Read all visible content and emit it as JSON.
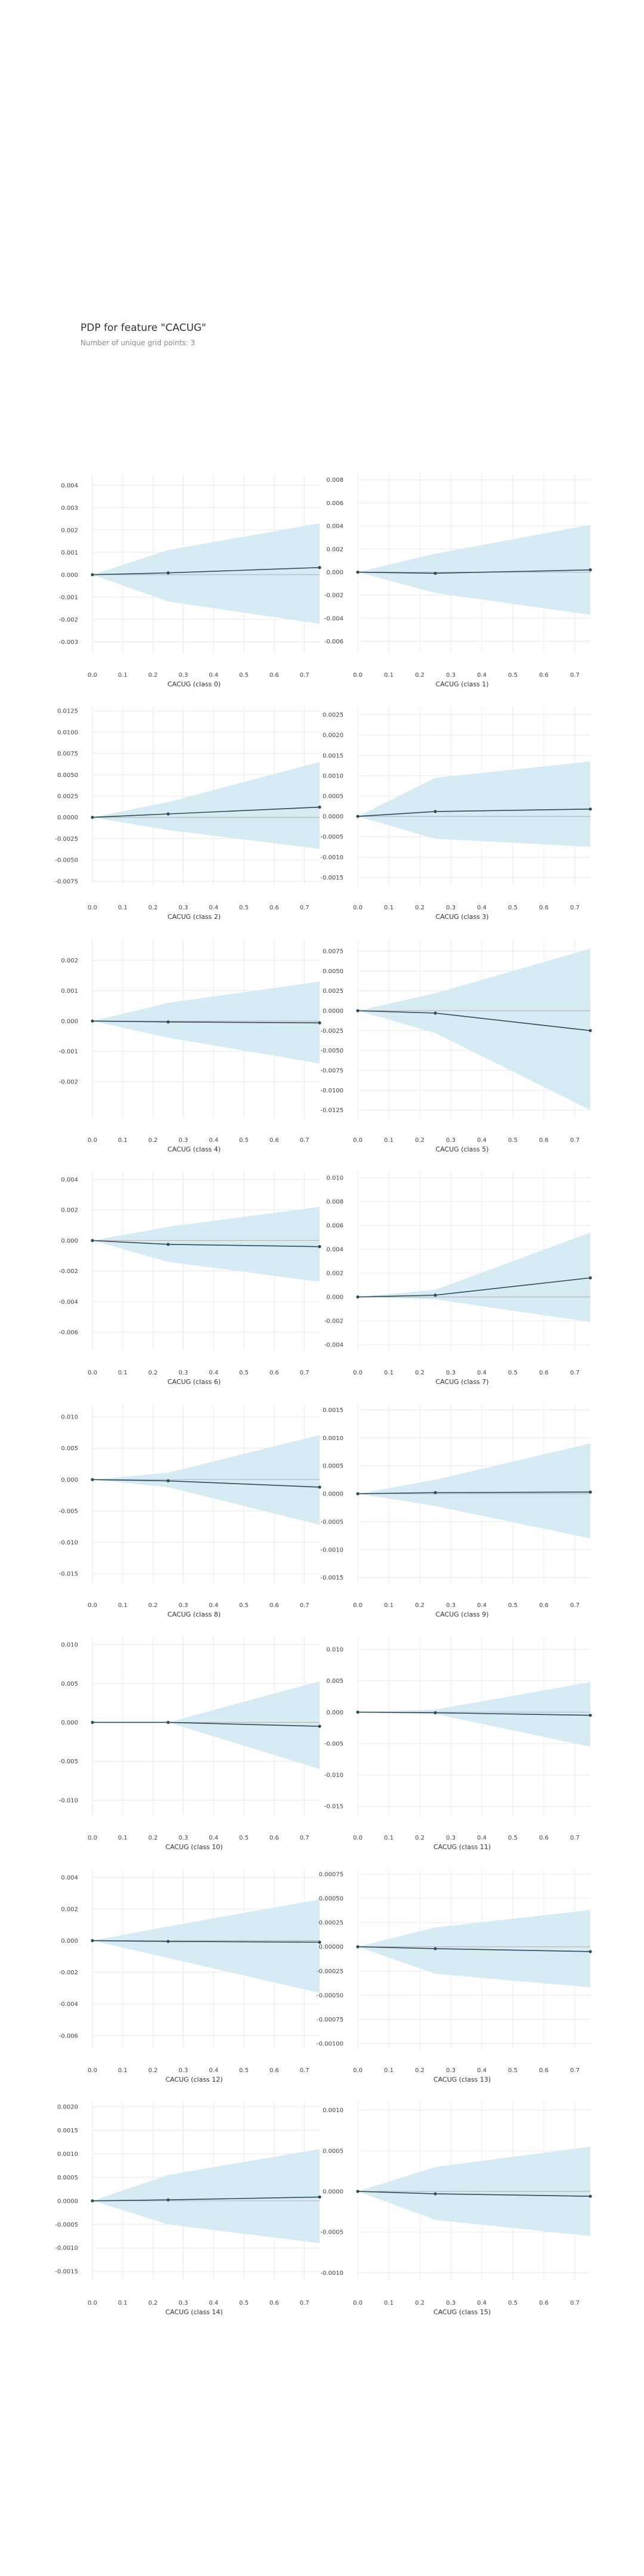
{
  "title": "PDP for feature \"CACUG\"",
  "subtitle": "Number of unique grid points: 3",
  "colors": {
    "band": "#d6ebf4",
    "line": "#2f4b57",
    "ref": "#b8b8b8",
    "grid": "#e9e9e9"
  },
  "chart_data": [
    {
      "type": "line",
      "xlabel": "CACUG (class 0)",
      "x": [
        0.0,
        0.25,
        0.75
      ],
      "y": [
        0.0,
        8e-05,
        0.00032
      ],
      "lower": [
        0.0,
        -0.0012,
        -0.0022
      ],
      "upper": [
        0.0,
        0.0011,
        0.0023
      ],
      "ylim": [
        -0.0035,
        0.0045
      ],
      "yticks": [
        -0.003,
        -0.002,
        -0.001,
        0.0,
        0.001,
        0.002,
        0.003,
        0.004
      ],
      "ytick_labels": [
        "-0.003",
        "-0.002",
        "-0.001",
        "0.000",
        "0.001",
        "0.002",
        "0.003",
        "0.004"
      ],
      "xticks": [
        0.0,
        0.1,
        0.2,
        0.3,
        0.4,
        0.5,
        0.6,
        0.7
      ],
      "xtick_labels": [
        "0.0",
        "0.1",
        "0.2",
        "0.3",
        "0.4",
        "0.5",
        "0.6",
        "0.7"
      ]
    },
    {
      "type": "line",
      "xlabel": "CACUG (class 1)",
      "x": [
        0.0,
        0.25,
        0.75
      ],
      "y": [
        0.0,
        -0.0001,
        0.0002
      ],
      "lower": [
        0.0,
        -0.0018,
        -0.0037
      ],
      "upper": [
        0.0,
        0.0016,
        0.0041
      ],
      "ylim": [
        -0.007,
        0.0085
      ],
      "yticks": [
        -0.006,
        -0.004,
        -0.002,
        0.0,
        0.002,
        0.004,
        0.006,
        0.008
      ],
      "ytick_labels": [
        "-0.006",
        "-0.004",
        "-0.002",
        "0.000",
        "0.002",
        "0.004",
        "0.006",
        "0.008"
      ],
      "xticks": [
        0.0,
        0.1,
        0.2,
        0.3,
        0.4,
        0.5,
        0.6,
        0.7
      ],
      "xtick_labels": [
        "0.0",
        "0.1",
        "0.2",
        "0.3",
        "0.4",
        "0.5",
        "0.6",
        "0.7"
      ]
    },
    {
      "type": "line",
      "xlabel": "CACUG (class 2)",
      "x": [
        0.0,
        0.25,
        0.75
      ],
      "y": [
        0.0,
        0.0004,
        0.0012
      ],
      "lower": [
        0.0,
        -0.0015,
        -0.0037
      ],
      "upper": [
        0.0,
        0.0018,
        0.0065
      ],
      "ylim": [
        -0.008,
        0.013
      ],
      "yticks": [
        -0.0075,
        -0.005,
        -0.0025,
        0.0,
        0.0025,
        0.005,
        0.0075,
        0.01,
        0.0125
      ],
      "ytick_labels": [
        "-0.0075",
        "-0.0050",
        "-0.0025",
        "0.0000",
        "0.0025",
        "0.0050",
        "0.0075",
        "0.0100",
        "0.0125"
      ],
      "xticks": [
        0.0,
        0.1,
        0.2,
        0.3,
        0.4,
        0.5,
        0.6,
        0.7
      ],
      "xtick_labels": [
        "0.0",
        "0.1",
        "0.2",
        "0.3",
        "0.4",
        "0.5",
        "0.6",
        "0.7"
      ]
    },
    {
      "type": "line",
      "xlabel": "CACUG (class 3)",
      "x": [
        0.0,
        0.25,
        0.75
      ],
      "y": [
        0.0,
        0.00012,
        0.00018
      ],
      "lower": [
        0.0,
        -0.00055,
        -0.00075
      ],
      "upper": [
        0.0,
        0.00095,
        0.00135
      ],
      "ylim": [
        -0.0017,
        0.0027
      ],
      "yticks": [
        -0.0015,
        -0.001,
        -0.0005,
        0.0,
        0.0005,
        0.001,
        0.0015,
        0.002,
        0.0025
      ],
      "ytick_labels": [
        "-0.0015",
        "-0.0010",
        "-0.0005",
        "0.0000",
        "0.0005",
        "0.0010",
        "0.0015",
        "0.0020",
        "0.0025"
      ],
      "xticks": [
        0.0,
        0.1,
        0.2,
        0.3,
        0.4,
        0.5,
        0.6,
        0.7
      ],
      "xtick_labels": [
        "0.0",
        "0.1",
        "0.2",
        "0.3",
        "0.4",
        "0.5",
        "0.6",
        "0.7"
      ]
    },
    {
      "type": "line",
      "xlabel": "CACUG (class 4)",
      "x": [
        0.0,
        0.25,
        0.75
      ],
      "y": [
        0.0,
        -3e-05,
        -6e-05
      ],
      "lower": [
        0.0,
        -0.00055,
        -0.0014
      ],
      "upper": [
        0.0,
        0.0006,
        0.0013
      ],
      "ylim": [
        -0.0032,
        0.0027
      ],
      "yticks": [
        -0.002,
        -0.001,
        0.0,
        0.001,
        0.002
      ],
      "ytick_labels": [
        "-0.002",
        "-0.001",
        "0.000",
        "0.001",
        "0.002"
      ],
      "xticks": [
        0.0,
        0.1,
        0.2,
        0.3,
        0.4,
        0.5,
        0.6,
        0.7
      ],
      "xtick_labels": [
        "0.0",
        "0.1",
        "0.2",
        "0.3",
        "0.4",
        "0.5",
        "0.6",
        "0.7"
      ]
    },
    {
      "type": "line",
      "xlabel": "CACUG (class 5)",
      "x": [
        0.0,
        0.25,
        0.75
      ],
      "y": [
        0.0,
        -0.0003,
        -0.0025
      ],
      "lower": [
        0.0,
        -0.0028,
        -0.0125
      ],
      "upper": [
        0.0,
        0.0022,
        0.0078
      ],
      "ylim": [
        -0.0135,
        0.009
      ],
      "yticks": [
        -0.0125,
        -0.01,
        -0.0075,
        -0.005,
        -0.0025,
        0.0,
        0.0025,
        0.005,
        0.0075
      ],
      "ytick_labels": [
        "-0.0125",
        "-0.0100",
        "-0.0075",
        "-0.0050",
        "-0.0025",
        "0.0000",
        "0.0025",
        "0.0050",
        "0.0075"
      ],
      "xticks": [
        0.0,
        0.1,
        0.2,
        0.3,
        0.4,
        0.5,
        0.6,
        0.7
      ],
      "xtick_labels": [
        "0.0",
        "0.1",
        "0.2",
        "0.3",
        "0.4",
        "0.5",
        "0.6",
        "0.7"
      ]
    },
    {
      "type": "line",
      "xlabel": "CACUG (class 6)",
      "x": [
        0.0,
        0.25,
        0.75
      ],
      "y": [
        0.0,
        -0.00025,
        -0.0004
      ],
      "lower": [
        0.0,
        -0.0014,
        -0.0027
      ],
      "upper": [
        0.0,
        0.0009,
        0.0022
      ],
      "ylim": [
        -0.0072,
        0.0045
      ],
      "yticks": [
        -0.006,
        -0.004,
        -0.002,
        0.0,
        0.002,
        0.004
      ],
      "ytick_labels": [
        "-0.006",
        "-0.004",
        "-0.002",
        "0.000",
        "0.002",
        "0.004"
      ],
      "xticks": [
        0.0,
        0.1,
        0.2,
        0.3,
        0.4,
        0.5,
        0.6,
        0.7
      ],
      "xtick_labels": [
        "0.0",
        "0.1",
        "0.2",
        "0.3",
        "0.4",
        "0.5",
        "0.6",
        "0.7"
      ]
    },
    {
      "type": "line",
      "xlabel": "CACUG (class 7)",
      "x": [
        0.0,
        0.25,
        0.75
      ],
      "y": [
        0.0,
        0.00015,
        0.0016
      ],
      "lower": [
        0.0,
        -0.0002,
        -0.0021
      ],
      "upper": [
        0.0,
        0.0006,
        0.0054
      ],
      "ylim": [
        -0.0045,
        0.0105
      ],
      "yticks": [
        -0.004,
        -0.002,
        0.0,
        0.002,
        0.004,
        0.006,
        0.008,
        0.01
      ],
      "ytick_labels": [
        "-0.004",
        "-0.002",
        "0.000",
        "0.002",
        "0.004",
        "0.006",
        "0.008",
        "0.010"
      ],
      "xticks": [
        0.0,
        0.1,
        0.2,
        0.3,
        0.4,
        0.5,
        0.6,
        0.7
      ],
      "xtick_labels": [
        "0.0",
        "0.1",
        "0.2",
        "0.3",
        "0.4",
        "0.5",
        "0.6",
        "0.7"
      ]
    },
    {
      "type": "line",
      "xlabel": "CACUG (class 8)",
      "x": [
        0.0,
        0.25,
        0.75
      ],
      "y": [
        0.0,
        -0.0002,
        -0.0012
      ],
      "lower": [
        0.0,
        -0.0012,
        -0.0072
      ],
      "upper": [
        0.0,
        0.0011,
        0.0071
      ],
      "ylim": [
        -0.0165,
        0.012
      ],
      "yticks": [
        -0.015,
        -0.01,
        -0.005,
        0.0,
        0.005,
        0.01
      ],
      "ytick_labels": [
        "-0.015",
        "-0.010",
        "-0.005",
        "0.000",
        "0.005",
        "0.010"
      ],
      "xticks": [
        0.0,
        0.1,
        0.2,
        0.3,
        0.4,
        0.5,
        0.6,
        0.7
      ],
      "xtick_labels": [
        "0.0",
        "0.1",
        "0.2",
        "0.3",
        "0.4",
        "0.5",
        "0.6",
        "0.7"
      ]
    },
    {
      "type": "line",
      "xlabel": "CACUG (class 9)",
      "x": [
        0.0,
        0.25,
        0.75
      ],
      "y": [
        0.0,
        2e-05,
        3e-05
      ],
      "lower": [
        0.0,
        -0.00022,
        -0.0008
      ],
      "upper": [
        0.0,
        0.00025,
        0.0009
      ],
      "ylim": [
        -0.0016,
        0.0016
      ],
      "yticks": [
        -0.0015,
        -0.001,
        -0.0005,
        0.0,
        0.0005,
        0.001,
        0.0015
      ],
      "ytick_labels": [
        "-0.0015",
        "-0.0010",
        "-0.0005",
        "0.0000",
        "0.0005",
        "0.0010",
        "0.0015"
      ],
      "xticks": [
        0.0,
        0.1,
        0.2,
        0.3,
        0.4,
        0.5,
        0.6,
        0.7
      ],
      "xtick_labels": [
        "0.0",
        "0.1",
        "0.2",
        "0.3",
        "0.4",
        "0.5",
        "0.6",
        "0.7"
      ]
    },
    {
      "type": "line",
      "xlabel": "CACUG (class 10)",
      "x": [
        0.0,
        0.25,
        0.75
      ],
      "y": [
        0.0,
        0.0,
        -0.0005
      ],
      "lower": [
        0.0,
        0.0,
        -0.006
      ],
      "upper": [
        0.0,
        0.0,
        0.0053
      ],
      "ylim": [
        -0.012,
        0.011
      ],
      "yticks": [
        -0.01,
        -0.005,
        0.0,
        0.005,
        0.01
      ],
      "ytick_labels": [
        "-0.010",
        "-0.005",
        "0.000",
        "0.005",
        "0.010"
      ],
      "xticks": [
        0.0,
        0.1,
        0.2,
        0.3,
        0.4,
        0.5,
        0.6,
        0.7
      ],
      "xtick_labels": [
        "0.0",
        "0.1",
        "0.2",
        "0.3",
        "0.4",
        "0.5",
        "0.6",
        "0.7"
      ]
    },
    {
      "type": "line",
      "xlabel": "CACUG (class 11)",
      "x": [
        0.0,
        0.25,
        0.75
      ],
      "y": [
        0.0,
        -0.0001,
        -0.0005
      ],
      "lower": [
        0.0,
        -0.0003,
        -0.0055
      ],
      "upper": [
        0.0,
        0.0004,
        0.0048
      ],
      "ylim": [
        -0.0165,
        0.012
      ],
      "yticks": [
        -0.015,
        -0.01,
        -0.005,
        0.0,
        0.005,
        0.01
      ],
      "ytick_labels": [
        "-0.015",
        "-0.010",
        "-0.005",
        "0.000",
        "0.005",
        "0.010"
      ],
      "xticks": [
        0.0,
        0.1,
        0.2,
        0.3,
        0.4,
        0.5,
        0.6,
        0.7
      ],
      "xtick_labels": [
        "0.0",
        "0.1",
        "0.2",
        "0.3",
        "0.4",
        "0.5",
        "0.6",
        "0.7"
      ]
    },
    {
      "type": "line",
      "xlabel": "CACUG (class 12)",
      "x": [
        0.0,
        0.25,
        0.75
      ],
      "y": [
        0.0,
        -5e-05,
        -0.0001
      ],
      "lower": [
        0.0,
        -0.0011,
        -0.0033
      ],
      "upper": [
        0.0,
        0.0009,
        0.0026
      ],
      "ylim": [
        -0.0068,
        0.0045
      ],
      "yticks": [
        -0.006,
        -0.004,
        -0.002,
        0.0,
        0.002,
        0.004
      ],
      "ytick_labels": [
        "-0.006",
        "-0.004",
        "-0.002",
        "0.000",
        "0.002",
        "0.004"
      ],
      "xticks": [
        0.0,
        0.1,
        0.2,
        0.3,
        0.4,
        0.5,
        0.6,
        0.7
      ],
      "xtick_labels": [
        "0.0",
        "0.1",
        "0.2",
        "0.3",
        "0.4",
        "0.5",
        "0.6",
        "0.7"
      ]
    },
    {
      "type": "line",
      "xlabel": "CACUG (class 13)",
      "x": [
        0.0,
        0.25,
        0.75
      ],
      "y": [
        0.0,
        -2e-05,
        -5e-05
      ],
      "lower": [
        0.0,
        -0.00028,
        -0.00042
      ],
      "upper": [
        0.0,
        0.0002,
        0.00038
      ],
      "ylim": [
        -0.00105,
        0.0008
      ],
      "yticks": [
        -0.001,
        -0.00075,
        -0.0005,
        -0.00025,
        0.0,
        0.00025,
        0.0005,
        0.00075
      ],
      "ytick_labels": [
        "-0.00100",
        "-0.00075",
        "-0.00050",
        "-0.00025",
        "0.00000",
        "0.00025",
        "0.00050",
        "0.00075"
      ],
      "xticks": [
        0.0,
        0.1,
        0.2,
        0.3,
        0.4,
        0.5,
        0.6,
        0.7
      ],
      "xtick_labels": [
        "0.0",
        "0.1",
        "0.2",
        "0.3",
        "0.4",
        "0.5",
        "0.6",
        "0.7"
      ]
    },
    {
      "type": "line",
      "xlabel": "CACUG (class 14)",
      "x": [
        0.0,
        0.25,
        0.75
      ],
      "y": [
        0.0,
        2e-05,
        8e-05
      ],
      "lower": [
        0.0,
        -0.0005,
        -0.0009
      ],
      "upper": [
        0.0,
        0.00055,
        0.0011
      ],
      "ylim": [
        -0.0017,
        0.0021
      ],
      "yticks": [
        -0.0015,
        -0.001,
        -0.0005,
        0.0,
        0.0005,
        0.001,
        0.0015,
        0.002
      ],
      "ytick_labels": [
        "-0.0015",
        "-0.0010",
        "-0.0005",
        "0.0000",
        "0.0005",
        "0.0010",
        "0.0015",
        "0.0020"
      ],
      "xticks": [
        0.0,
        0.1,
        0.2,
        0.3,
        0.4,
        0.5,
        0.6,
        0.7
      ],
      "xtick_labels": [
        "0.0",
        "0.1",
        "0.2",
        "0.3",
        "0.4",
        "0.5",
        "0.6",
        "0.7"
      ]
    },
    {
      "type": "line",
      "xlabel": "CACUG (class 15)",
      "x": [
        0.0,
        0.25,
        0.75
      ],
      "y": [
        0.0,
        -3e-05,
        -6e-05
      ],
      "lower": [
        0.0,
        -0.00035,
        -0.00055
      ],
      "upper": [
        0.0,
        0.0003,
        0.00055
      ],
      "ylim": [
        -0.0011,
        0.0011
      ],
      "yticks": [
        -0.001,
        -0.0005,
        0.0,
        0.0005,
        0.001
      ],
      "ytick_labels": [
        "-0.0010",
        "-0.0005",
        "0.0000",
        "0.0005",
        "0.0010"
      ],
      "xticks": [
        0.0,
        0.1,
        0.2,
        0.3,
        0.4,
        0.5,
        0.6,
        0.7
      ],
      "xtick_labels": [
        "0.0",
        "0.1",
        "0.2",
        "0.3",
        "0.4",
        "0.5",
        "0.6",
        "0.7"
      ]
    }
  ]
}
